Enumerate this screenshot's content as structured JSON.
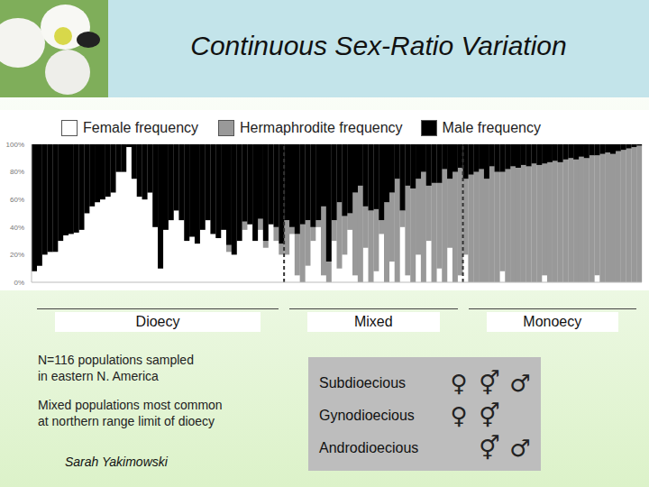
{
  "chart_data": {
    "type": "bar",
    "title": "Continuous Sex-Ratio Variation",
    "stacked": true,
    "legend": "top",
    "tick_labels": "y",
    "categories": [
      null,
      null,
      null,
      null,
      null,
      null,
      null,
      null,
      null,
      null,
      null,
      null,
      null,
      null,
      null,
      null,
      null,
      null,
      null,
      null,
      null,
      null,
      null,
      null,
      null,
      null,
      null,
      null,
      null,
      null,
      null,
      null,
      null,
      null,
      null,
      null,
      null,
      null,
      null,
      null,
      null,
      null,
      null,
      null,
      null,
      null,
      null,
      null,
      null,
      null,
      null,
      null,
      null,
      null,
      null,
      null,
      null,
      null,
      null,
      null,
      null,
      null,
      null,
      null,
      null,
      null,
      null,
      null,
      null,
      null,
      null,
      null,
      null,
      null,
      null,
      null,
      null,
      null,
      null,
      null,
      null,
      null,
      null,
      null,
      null,
      null,
      null,
      null,
      null,
      null,
      null,
      null,
      null,
      null,
      null,
      null,
      null,
      null,
      null,
      null,
      null,
      null,
      null,
      null,
      null,
      null,
      null,
      null,
      null,
      null,
      null,
      null,
      null,
      null,
      null,
      null
    ],
    "series": [
      {
        "name": "Female frequency",
        "color": "#ffffff",
        "values": [
          8,
          12,
          20,
          22,
          22,
          30,
          34,
          35,
          36,
          38,
          50,
          55,
          58,
          60,
          62,
          65,
          80,
          80,
          98,
          75,
          62,
          60,
          65,
          40,
          10,
          38,
          45,
          52,
          45,
          30,
          33,
          28,
          38,
          45,
          35,
          32,
          38,
          22,
          20,
          30,
          38,
          42,
          30,
          38,
          25,
          42,
          30,
          20,
          20,
          35,
          5,
          0,
          12,
          30,
          40,
          5,
          0,
          30,
          10,
          20,
          38,
          5,
          0,
          25,
          0,
          8,
          35,
          0,
          15,
          0,
          40,
          5,
          0,
          20,
          0,
          30,
          0,
          10,
          0,
          25,
          0,
          5,
          20,
          0,
          0,
          0,
          0,
          0,
          0,
          8,
          0,
          0,
          0,
          0,
          0,
          0,
          0,
          5,
          0,
          0,
          0,
          0,
          0,
          0,
          0,
          0,
          0,
          5,
          0,
          0,
          0,
          0,
          0,
          0,
          0,
          0
        ]
      },
      {
        "name": "Hermaphrodite frequency",
        "color": "#999999",
        "values": [
          0,
          0,
          0,
          0,
          0,
          0,
          0,
          0,
          0,
          0,
          0,
          0,
          0,
          0,
          0,
          0,
          0,
          0,
          0,
          0,
          0,
          0,
          0,
          0,
          0,
          0,
          0,
          0,
          0,
          0,
          0,
          0,
          0,
          0,
          0,
          0,
          0,
          5,
          0,
          0,
          6,
          0,
          0,
          8,
          5,
          0,
          10,
          8,
          25,
          5,
          30,
          42,
          33,
          10,
          5,
          50,
          15,
          15,
          48,
          28,
          12,
          60,
          70,
          30,
          52,
          45,
          10,
          58,
          50,
          75,
          12,
          65,
          68,
          55,
          80,
          40,
          72,
          62,
          82,
          50,
          80,
          78,
          55,
          78,
          80,
          82,
          75,
          84,
          80,
          72,
          82,
          84,
          83,
          85,
          84,
          86,
          85,
          81,
          87,
          88,
          87,
          89,
          90,
          89,
          91,
          90,
          92,
          87,
          93,
          94,
          93,
          95,
          96,
          97,
          98,
          99
        ]
      },
      {
        "name": "Male frequency",
        "color": "#000000",
        "values": [
          92,
          88,
          80,
          78,
          78,
          70,
          66,
          65,
          64,
          62,
          50,
          45,
          42,
          40,
          38,
          35,
          20,
          20,
          2,
          25,
          38,
          40,
          35,
          60,
          90,
          62,
          55,
          48,
          55,
          70,
          67,
          72,
          62,
          55,
          65,
          68,
          62,
          73,
          80,
          70,
          56,
          58,
          70,
          54,
          70,
          58,
          60,
          72,
          55,
          60,
          65,
          58,
          55,
          60,
          55,
          45,
          85,
          55,
          42,
          52,
          50,
          35,
          30,
          45,
          48,
          47,
          55,
          42,
          35,
          25,
          48,
          30,
          32,
          25,
          20,
          30,
          28,
          28,
          18,
          25,
          20,
          17,
          25,
          22,
          20,
          18,
          25,
          16,
          20,
          20,
          18,
          16,
          17,
          15,
          16,
          14,
          15,
          14,
          13,
          12,
          13,
          11,
          10,
          11,
          9,
          10,
          8,
          8,
          7,
          6,
          7,
          5,
          4,
          3,
          2,
          1
        ]
      }
    ],
    "ylim": [
      0,
      100
    ],
    "yticks": [
      {
        "value": 0,
        "label": "0%"
      },
      {
        "value": 20,
        "label": "20%"
      },
      {
        "value": 40,
        "label": "40%"
      },
      {
        "value": 60,
        "label": "60%"
      },
      {
        "value": 80,
        "label": "80%"
      },
      {
        "value": 100,
        "label": "100%"
      }
    ],
    "regions": [
      {
        "label": "Dioecy",
        "from": 0,
        "to": 47
      },
      {
        "label": "Mixed",
        "from": 48,
        "to": 81
      },
      {
        "label": "Monoecy",
        "from": 82,
        "to": 115
      }
    ],
    "notes": [
      [
        "N=116 populations sampled",
        "in eastern N. America"
      ],
      [
        "Mixed populations most common",
        "at northern range limit of dioecy"
      ]
    ],
    "author": "Sarah Yakimowski",
    "mating_systems": [
      {
        "label": "Subdioecious",
        "symbols": [
          "♀",
          "⚥",
          "♂"
        ]
      },
      {
        "label": "Gynodioecious",
        "symbols": [
          "♀",
          "⚥",
          null
        ]
      },
      {
        "label": "Androdioecious",
        "symbols": [
          null,
          "⚥",
          "♂"
        ]
      }
    ]
  }
}
